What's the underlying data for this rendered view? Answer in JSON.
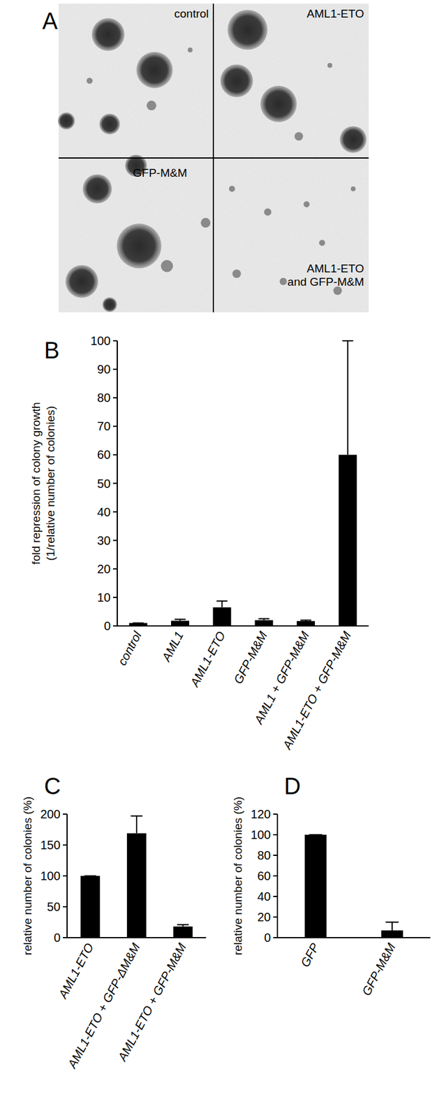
{
  "micrographs": {
    "panel_label": "A",
    "images": [
      {
        "label": [
          "control"
        ]
      },
      {
        "label": [
          "AML1-ETO"
        ]
      },
      {
        "label": [
          "GFP-M&M"
        ]
      },
      {
        "label": [
          "AML1-ETO",
          "and GFP-M&M"
        ]
      }
    ]
  },
  "chart_data": [
    {
      "type": "bar",
      "title": "B",
      "ylabel": [
        "fold repression of colony growth",
        "(1/relative number of colonies)"
      ],
      "categories": [
        "control",
        "AML1",
        "AML1-ETO",
        "GFP-M&M",
        "AML1 + GFP-M&M",
        "AML1-ETO + GFP-M&M"
      ],
      "values": [
        1,
        1.8,
        6.5,
        2,
        1.7,
        60
      ],
      "errors": [
        0,
        0.5,
        2.2,
        0.5,
        0.3,
        40
      ],
      "color": "#000000",
      "ylim": [
        0,
        100
      ],
      "yticks": [
        0,
        10,
        20,
        30,
        40,
        50,
        60,
        70,
        80,
        90,
        100
      ]
    },
    {
      "type": "bar",
      "title": "C",
      "ylabel": [
        "relative number of colonies (%)"
      ],
      "categories": [
        "AML1-ETO",
        "AML1-ETO + GFP-ΔM&M",
        "AML1-ETO + GFP-M&M"
      ],
      "values": [
        100,
        169,
        18
      ],
      "errors": [
        0,
        28,
        3
      ],
      "color": "#000000",
      "ylim": [
        0,
        200
      ],
      "yticks": [
        0,
        50,
        100,
        150,
        200
      ]
    },
    {
      "type": "bar",
      "title": "D",
      "ylabel": [
        "relative number of colonies (%)"
      ],
      "categories": [
        "GFP",
        "GFP-M&M"
      ],
      "values": [
        100,
        7
      ],
      "errors": [
        0,
        8
      ],
      "color": "#000000",
      "ylim": [
        0,
        120
      ],
      "yticks": [
        0,
        20,
        40,
        60,
        80,
        100,
        120
      ]
    }
  ]
}
